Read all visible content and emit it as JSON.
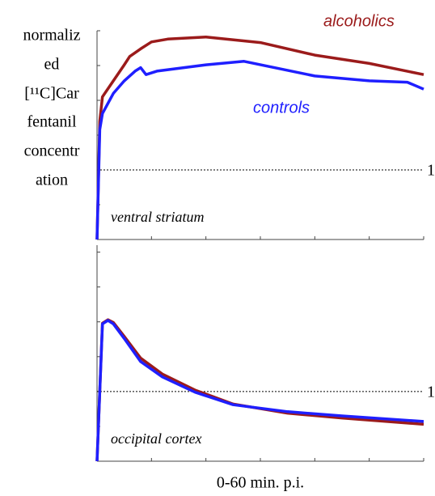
{
  "ylabel_lines": [
    "normaliz",
    "ed",
    "[¹¹C]Car",
    "fentanil",
    "concentr",
    "ation"
  ],
  "xlabel": "0-60 min. p.i.",
  "chart_data": [
    {
      "type": "line",
      "panel_label": "ventral striatum",
      "xlim": [
        0,
        60
      ],
      "xticks": [
        0,
        10,
        20,
        30,
        40,
        50,
        60
      ],
      "ylim": [
        0,
        3
      ],
      "yticks": [
        0,
        0.5,
        1,
        1.5,
        2,
        2.5,
        3
      ],
      "reference_line": {
        "value": 1,
        "label": "1"
      },
      "series": [
        {
          "name": "alcoholics",
          "color": "#9b1b1b",
          "x": [
            0,
            0.5,
            1,
            3,
            5,
            6,
            8,
            10,
            13,
            20,
            30,
            40,
            50,
            60
          ],
          "values": [
            0,
            1.7,
            2.05,
            2.28,
            2.51,
            2.63,
            2.74,
            2.84,
            2.88,
            2.91,
            2.83,
            2.65,
            2.53,
            2.37
          ]
        },
        {
          "name": "controls",
          "color": "#1f1fff",
          "x": [
            0,
            0.5,
            1,
            3,
            5,
            7,
            8,
            9,
            11,
            20,
            27,
            40,
            50,
            57,
            60
          ],
          "values": [
            0,
            1.58,
            1.81,
            2.1,
            2.28,
            2.42,
            2.47,
            2.37,
            2.42,
            2.51,
            2.56,
            2.35,
            2.28,
            2.26,
            2.16
          ]
        }
      ]
    },
    {
      "type": "line",
      "panel_label": "occipital cortex",
      "xlim": [
        0,
        60
      ],
      "xticks": [
        0,
        10,
        20,
        30,
        40,
        50,
        60
      ],
      "ylim": [
        0,
        3.1
      ],
      "yticks": [
        0,
        0.5,
        1,
        1.5,
        2,
        2.5,
        3
      ],
      "reference_line": {
        "value": 1,
        "label": "1"
      },
      "series": [
        {
          "name": "alcoholics",
          "color": "#9b1b1b",
          "x": [
            0,
            1,
            2,
            3,
            5,
            8,
            12,
            18,
            25,
            35,
            45,
            60
          ],
          "values": [
            0,
            1.98,
            2.03,
            1.99,
            1.79,
            1.48,
            1.25,
            1.02,
            0.82,
            0.69,
            0.62,
            0.53
          ]
        },
        {
          "name": "controls",
          "color": "#1f1fff",
          "x": [
            0,
            1,
            2,
            3,
            5,
            8,
            12,
            18,
            25,
            35,
            45,
            60
          ],
          "values": [
            0,
            1.97,
            2.02,
            1.97,
            1.76,
            1.43,
            1.21,
            0.99,
            0.81,
            0.71,
            0.65,
            0.57
          ]
        }
      ]
    }
  ]
}
